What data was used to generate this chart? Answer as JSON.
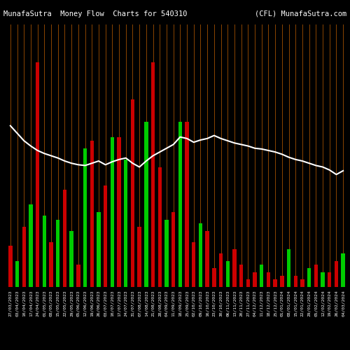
{
  "title_left": "MunafaSutra  Money Flow  Charts for 540310",
  "title_right": "(CFL) MunafaSutra.com",
  "background_color": "#000000",
  "grid_color": "#8B4500",
  "line_color": "#ffffff",
  "green_color": "#00cc00",
  "red_color": "#cc0000",
  "categories": [
    "27/03/2023",
    "03/04/2023",
    "10/04/2023",
    "17/04/2023",
    "24/04/2023",
    "01/05/2023",
    "08/05/2023",
    "15/05/2023",
    "22/05/2023",
    "29/05/2023",
    "05/06/2023",
    "12/06/2023",
    "19/06/2023",
    "26/06/2023",
    "03/07/2023",
    "10/07/2023",
    "17/07/2023",
    "24/07/2023",
    "31/07/2023",
    "07/08/2023",
    "14/08/2023",
    "21/08/2023",
    "28/08/2023",
    "04/09/2023",
    "11/09/2023",
    "18/09/2023",
    "25/09/2023",
    "02/10/2023",
    "09/10/2023",
    "16/10/2023",
    "23/10/2023",
    "30/10/2023",
    "06/11/2023",
    "13/11/2023",
    "20/11/2023",
    "27/11/2023",
    "04/12/2023",
    "11/12/2023",
    "18/12/2023",
    "25/12/2023",
    "01/01/2024",
    "08/01/2024",
    "15/01/2024",
    "22/01/2024",
    "29/01/2024",
    "05/02/2024",
    "12/02/2024",
    "19/02/2024",
    "26/02/2024",
    "04/03/2024"
  ],
  "bar_values": [
    55,
    35,
    80,
    110,
    300,
    95,
    60,
    90,
    130,
    75,
    30,
    185,
    195,
    100,
    135,
    200,
    200,
    170,
    250,
    80,
    220,
    300,
    160,
    90,
    100,
    220,
    220,
    60,
    85,
    75,
    25,
    45,
    35,
    50,
    30,
    10,
    20,
    30,
    20,
    10,
    15,
    50,
    15,
    10,
    25,
    30,
    20,
    20,
    35,
    45
  ],
  "colors": [
    "red",
    "green",
    "red",
    "green",
    "red",
    "green",
    "red",
    "green",
    "red",
    "green",
    "red",
    "green",
    "red",
    "green",
    "red",
    "green",
    "red",
    "green",
    "red",
    "red",
    "green",
    "red",
    "red",
    "green",
    "red",
    "green",
    "red",
    "red",
    "green",
    "red",
    "red",
    "red",
    "green",
    "red",
    "red",
    "red",
    "red",
    "green",
    "red",
    "red",
    "red",
    "green",
    "red",
    "red",
    "green",
    "red",
    "green",
    "red",
    "red",
    "green"
  ],
  "line_values": [
    215,
    205,
    195,
    188,
    182,
    178,
    175,
    172,
    168,
    165,
    163,
    162,
    165,
    168,
    163,
    167,
    170,
    172,
    165,
    160,
    168,
    175,
    180,
    185,
    190,
    200,
    198,
    193,
    196,
    198,
    202,
    198,
    195,
    192,
    190,
    188,
    185,
    184,
    182,
    180,
    177,
    173,
    170,
    168,
    165,
    162,
    160,
    156,
    150,
    155
  ],
  "ylim": [
    0,
    350
  ],
  "title_fontsize": 7.5,
  "tick_fontsize": 4.5
}
